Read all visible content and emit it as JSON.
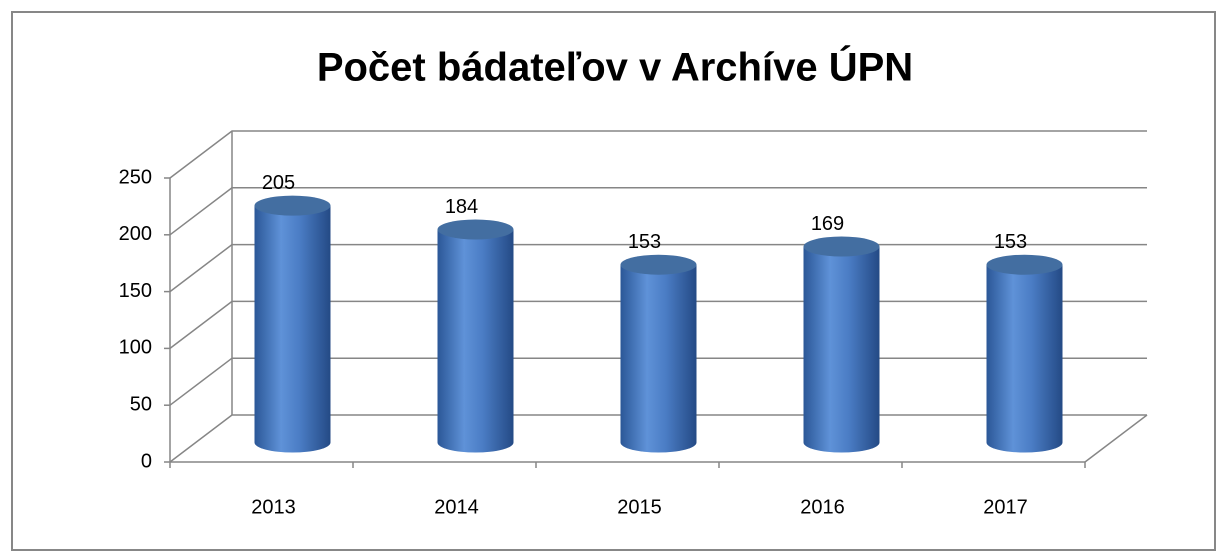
{
  "chart_data": {
    "type": "bar",
    "title": "Počet bádateľov v Archíve ÚPN",
    "categories": [
      "2013",
      "2014",
      "2015",
      "2016",
      "2017"
    ],
    "values": [
      205,
      184,
      153,
      169,
      153
    ],
    "color": "#4f81bd",
    "ylim": [
      0,
      250
    ],
    "yticks": [
      0,
      50,
      100,
      150,
      200,
      250
    ],
    "grid": true
  }
}
